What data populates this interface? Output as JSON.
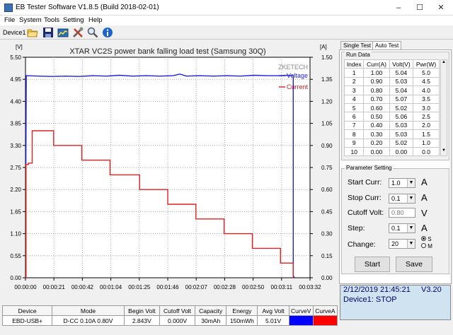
{
  "window": {
    "title": "EB Tester Software V1.8.5 (Build 2018-02-01)",
    "controls": [
      "–",
      "☐",
      "✕"
    ]
  },
  "menu": [
    "File",
    "System",
    "Tools",
    "Setting",
    "Help"
  ],
  "toolbar": {
    "device": "Device1",
    "buttons": [
      "open-folder-icon",
      "save-icon",
      "chart-icon",
      "tools-icon",
      "search-icon",
      "info-icon"
    ]
  },
  "chart_data": {
    "type": "line",
    "title": "XTAR VC2S power bank falling load test (Samsung 30Q)",
    "watermark": "ZKETECH",
    "left_axis_unit": "[V]",
    "right_axis_unit": "[A]",
    "y_left_ticks": [
      "5.50",
      "4.95",
      "4.40",
      "3.85",
      "3.30",
      "2.75",
      "2.20",
      "1.65",
      "1.10",
      "0.55",
      "0.00"
    ],
    "y_right_ticks": [
      "1.50",
      "1.35",
      "1.20",
      "1.05",
      "0.90",
      "0.75",
      "0.60",
      "0.45",
      "0.30",
      "0.15",
      "0.00"
    ],
    "x_ticks": [
      "00:00:00",
      "00:00:21",
      "00:00:42",
      "00:01:04",
      "00:01:25",
      "00:01:46",
      "00:02:07",
      "00:02:28",
      "00:02:50",
      "00:03:11",
      "00:03:32"
    ],
    "ylim_left": [
      0,
      5.5
    ],
    "ylim_right": [
      0,
      1.5
    ],
    "xlim": [
      0,
      212
    ],
    "grid": true,
    "legend_position": "top-right",
    "series": [
      {
        "name": "Voltage",
        "color": "#2020e0",
        "axis": "left",
        "x": [
          0,
          0.3,
          0.6,
          0.6,
          10,
          20,
          30,
          40,
          50,
          60,
          70,
          80,
          90,
          100,
          110,
          115,
          120,
          130,
          140,
          150,
          160,
          170,
          180,
          190,
          195,
          199.5,
          199.5,
          200.5
        ],
        "y": [
          2.843,
          2.843,
          4.97,
          5.04,
          5.03,
          5.02,
          5.03,
          5.02,
          5.04,
          5.03,
          5.05,
          5.03,
          5.04,
          5.03,
          5.04,
          5.08,
          5.03,
          5.04,
          5.03,
          5.04,
          5.03,
          5.05,
          5.04,
          5.04,
          5.05,
          5.04,
          0.05,
          0
        ]
      },
      {
        "name": "Current",
        "color": "#e02020",
        "axis": "right",
        "x": [
          0,
          0.4,
          0.4,
          2.2,
          2.2,
          5,
          5,
          21,
          21,
          42,
          42,
          63,
          63,
          85,
          85,
          106,
          106,
          127,
          127,
          148,
          148,
          169,
          169,
          190,
          190,
          199.5,
          199.5
        ],
        "y": [
          0,
          0,
          0.77,
          0.77,
          0.78,
          0.78,
          1.0,
          1.0,
          0.9,
          0.9,
          0.8,
          0.8,
          0.7,
          0.7,
          0.6,
          0.6,
          0.5,
          0.5,
          0.4,
          0.4,
          0.3,
          0.3,
          0.2,
          0.2,
          0.1,
          0.1,
          0
        ]
      }
    ]
  },
  "stats": {
    "headers": [
      "Device",
      "Mode",
      "Begin Volt",
      "Cutoff Volt",
      "Capacity",
      "Energy",
      "Avg Volt",
      "CurveV",
      "CurveA"
    ],
    "row": [
      "EBD-USB+",
      "D-CC  0.10A  0.80V",
      "2.843V",
      "0.000V",
      "30mAh",
      "150mWh",
      "5.01V",
      "",
      ""
    ],
    "curve_v_color": "#0000ff",
    "curve_a_color": "#ff0000"
  },
  "tabs": [
    "Single Test",
    "Auto Test"
  ],
  "active_tab": "Auto Test",
  "run_data": {
    "title": "Run Data",
    "headers": [
      "Index",
      "Curr(A)",
      "Volt(V)",
      "Pwr(W)"
    ],
    "rows": [
      [
        "1",
        "1.00",
        "5.04",
        "5.0"
      ],
      [
        "2",
        "0.90",
        "5.03",
        "4.5"
      ],
      [
        "3",
        "0.80",
        "5.04",
        "4.0"
      ],
      [
        "4",
        "0.70",
        "5.07",
        "3.5"
      ],
      [
        "5",
        "0.60",
        "5.02",
        "3.0"
      ],
      [
        "6",
        "0.50",
        "5.06",
        "2.5"
      ],
      [
        "7",
        "0.40",
        "5.03",
        "2.0"
      ],
      [
        "8",
        "0.30",
        "5.03",
        "1.5"
      ],
      [
        "9",
        "0.20",
        "5.02",
        "1.0"
      ],
      [
        "10",
        "0.00",
        "0.00",
        "0.0"
      ]
    ]
  },
  "params": {
    "title": "Parameter Setting",
    "start_curr": {
      "label": "Start Curr:",
      "value": "1.0",
      "unit": "A"
    },
    "stop_curr": {
      "label": "Stop Curr:",
      "value": "0.1",
      "unit": "A"
    },
    "cutoff_volt": {
      "label": "Cutoff Volt:",
      "value": "0.80",
      "unit": "V"
    },
    "step": {
      "label": "Step:",
      "value": "0.1",
      "unit": "A"
    },
    "change": {
      "label": "Change:",
      "value": "20"
    },
    "radio_s": "S",
    "radio_m": "M",
    "start_button": "Start",
    "save_button": "Save"
  },
  "status": {
    "datetime": "2/12/2019 21:45:21",
    "version": "V3.20",
    "device_state": "Device1: STOP"
  }
}
